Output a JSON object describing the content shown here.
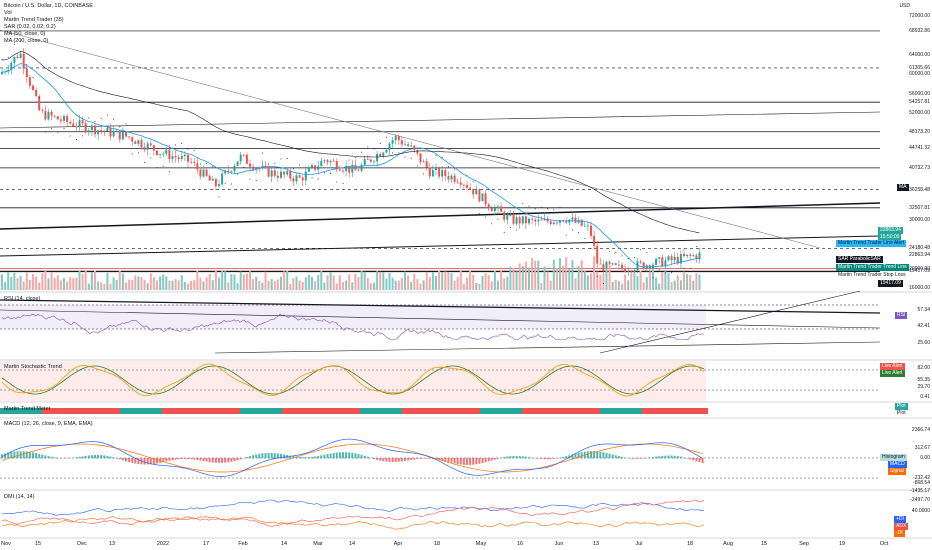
{
  "header": {
    "symbol": "Bitcoin / U.S. Dollar, 1D, COINBASE",
    "vol": "Vol",
    "trend_trader": "Martin Trend Trader (35)",
    "sar": "SAR (0.02, 0.02, 0.2)",
    "ma50": "MA (50, close, 0)",
    "ma200": "MA (200, close, 0)",
    "currency": "USD"
  },
  "price_axis": [
    "72000.00",
    "68932.86",
    "64000.00",
    "61305.66",
    "60000.00",
    "56000.00",
    "54257.81",
    "52000.00",
    "48173.20",
    "44741.32",
    "40732.73",
    "36258.48",
    "32507.81",
    "30000.00",
    "24180.48",
    "22863.94",
    "20000.00",
    "16000.00",
    "19417.09"
  ],
  "price_tags": {
    "current": "22863.94",
    "countdown": "15:50:09",
    "ma": "MA",
    "line_alert": "Martin Trend Trader Line Alert",
    "sar": "SAR ParabolicSAR",
    "trend_line": "Martin Trend Trader Trend Line",
    "stop_loss": "Martin Trend Trader Stop Loss",
    "low": "19417.09"
  },
  "panes": {
    "rsi": {
      "label": "RSI (14, close)",
      "axis": [
        "57.34",
        "42.41",
        "25.60"
      ],
      "tag": "RSI"
    },
    "stoch": {
      "label": "Martin Stochastic Trend",
      "axis": [
        "82.00",
        "55.35",
        "29.70",
        "0.41"
      ],
      "tags": [
        "Live Alert",
        "Live Alert"
      ]
    },
    "meter": {
      "label": "Martin Trend Meter",
      "tags": [
        "Plot",
        "Plot"
      ]
    },
    "macd": {
      "label": "MACD (12, 26, close, 9, EMA, EMA)",
      "axis": [
        "2366.74",
        "312.67",
        "0.00",
        "-232.42",
        "-868.54",
        "-1435.17",
        "-2497.70"
      ],
      "tags": [
        "Histogram",
        "MACD",
        "Signal"
      ]
    },
    "dmi": {
      "label": "DMI (14, 14)",
      "axis": [
        "40.0000"
      ],
      "tags": [
        "+DI",
        "ADX",
        "-DI"
      ]
    }
  },
  "time_axis": [
    "Nov",
    "15",
    "Dec",
    "13",
    "2022",
    "17",
    "Feb",
    "14",
    "Mar",
    "14",
    "Apr",
    "18",
    "May",
    "16",
    "Jun",
    "13",
    "Jul",
    "18",
    "Aug",
    "15",
    "Sep",
    "19",
    "Oct"
  ],
  "colors": {
    "up": "#26a69a",
    "down": "#ef5350",
    "ma50": "#2196f3",
    "ma200": "#131722",
    "rsi": "#7e57c2",
    "stoch_k": "#ff9800",
    "stoch_d": "#2e7d32",
    "macd": "#2962ff",
    "signal": "#ff6d00",
    "adx": "#ef5350"
  },
  "chart_data": {
    "type": "line",
    "title": "Bitcoin / U.S. Dollar, 1D, COINBASE",
    "x": [
      "Nov",
      "15",
      "Dec",
      "13",
      "2022",
      "17",
      "Feb",
      "14",
      "Mar",
      "14",
      "Apr",
      "18",
      "May",
      "16",
      "Jun",
      "13",
      "Jul",
      "18"
    ],
    "series": [
      {
        "name": "Bitcoin / U.S. Dollar",
        "values": [
          61300,
          64500,
          57000,
          49000,
          47000,
          42000,
          37500,
          43000,
          39000,
          41000,
          46500,
          40000,
          35000,
          30000,
          29500,
          20500,
          21500,
          23000
        ]
      }
    ],
    "ylim": [
      16000,
      72000
    ]
  }
}
